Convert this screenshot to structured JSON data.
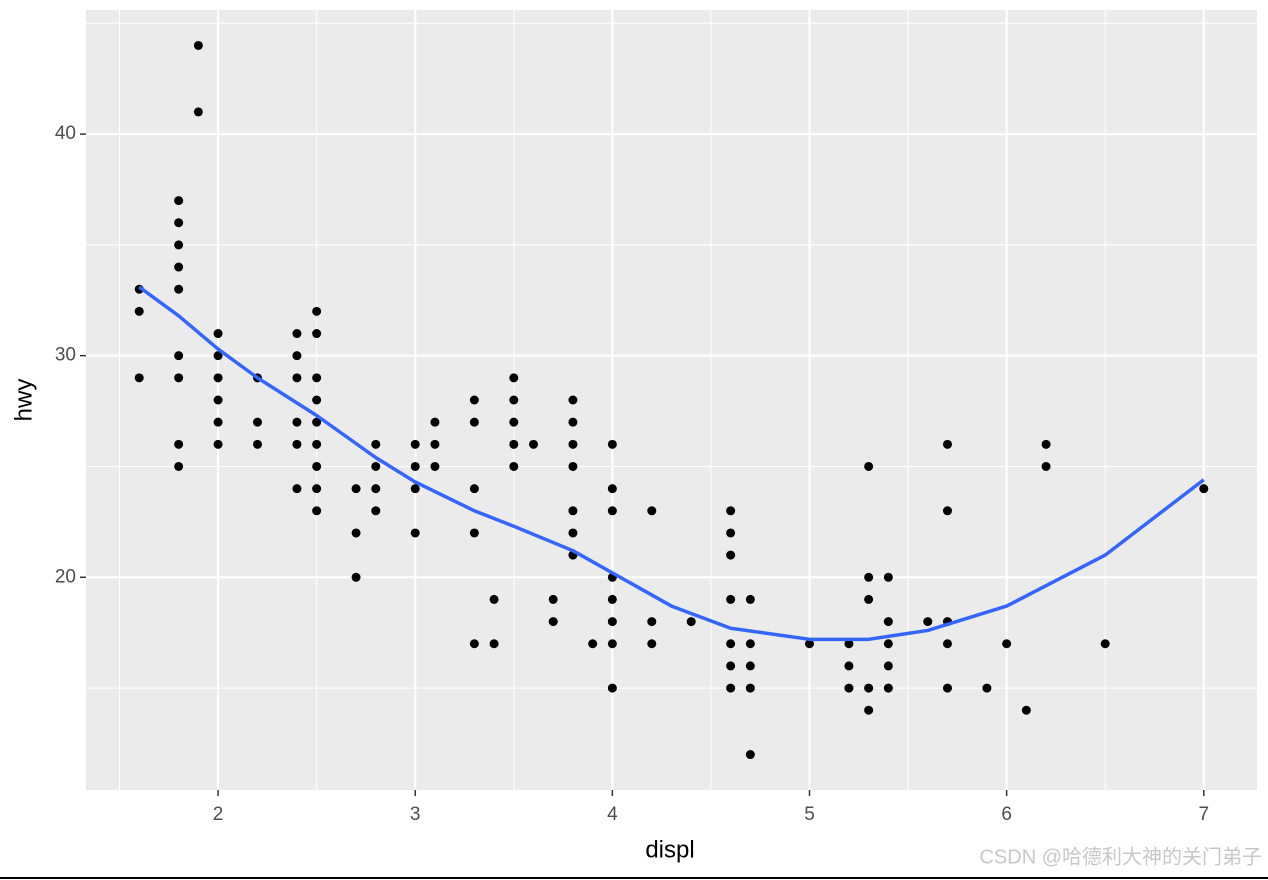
{
  "chart_data": {
    "type": "scatter",
    "x_label": "displ",
    "y_label": "hwy",
    "xlim": [
      1.33,
      7.27
    ],
    "ylim": [
      10.4,
      45.6
    ],
    "xticks": [
      2,
      3,
      4,
      5,
      6,
      7
    ],
    "yticks": [
      20,
      30,
      40
    ],
    "x_minor_ticks": [
      1.5,
      2.5,
      3.5,
      4.5,
      5.5,
      6.5
    ],
    "y_minor_ticks": [
      15,
      25,
      35,
      45
    ],
    "grid": true,
    "points": {
      "color": "#000000",
      "x": [
        1.6,
        1.6,
        1.6,
        1.8,
        1.8,
        1.8,
        1.8,
        1.8,
        1.8,
        1.8,
        1.8,
        1.8,
        1.9,
        1.9,
        2.0,
        2.0,
        2.0,
        2.0,
        2.0,
        2.0,
        2.2,
        2.2,
        2.2,
        2.4,
        2.4,
        2.4,
        2.4,
        2.4,
        2.4,
        2.5,
        2.5,
        2.5,
        2.5,
        2.5,
        2.5,
        2.5,
        2.5,
        2.5,
        2.7,
        2.7,
        2.7,
        2.8,
        2.8,
        2.8,
        2.8,
        3.0,
        3.0,
        3.0,
        3.0,
        3.1,
        3.1,
        3.1,
        3.3,
        3.3,
        3.3,
        3.3,
        3.3,
        3.4,
        3.4,
        3.5,
        3.5,
        3.5,
        3.5,
        3.5,
        3.6,
        3.7,
        3.7,
        3.8,
        3.8,
        3.8,
        3.8,
        3.8,
        3.8,
        3.8,
        3.9,
        4.0,
        4.0,
        4.0,
        4.0,
        4.0,
        4.0,
        4.0,
        4.0,
        4.2,
        4.2,
        4.2,
        4.4,
        4.6,
        4.6,
        4.6,
        4.6,
        4.6,
        4.6,
        4.6,
        4.7,
        4.7,
        4.7,
        4.7,
        4.7,
        5.0,
        5.2,
        5.2,
        5.2,
        5.3,
        5.3,
        5.3,
        5.3,
        5.3,
        5.4,
        5.4,
        5.4,
        5.4,
        5.4,
        5.6,
        5.7,
        5.7,
        5.7,
        5.7,
        5.7,
        5.9,
        6.0,
        6.1,
        6.2,
        6.2,
        6.5,
        7.0
      ],
      "y": [
        33,
        32,
        29,
        37,
        36,
        35,
        34,
        33,
        30,
        29,
        26,
        25,
        44,
        41,
        31,
        30,
        29,
        28,
        27,
        26,
        29,
        27,
        26,
        31,
        30,
        29,
        27,
        26,
        24,
        32,
        31,
        29,
        28,
        27,
        26,
        25,
        24,
        23,
        24,
        22,
        20,
        26,
        25,
        24,
        23,
        26,
        25,
        24,
        22,
        27,
        26,
        25,
        28,
        27,
        24,
        22,
        17,
        19,
        17,
        29,
        28,
        27,
        26,
        25,
        26,
        19,
        18,
        28,
        27,
        26,
        25,
        23,
        22,
        21,
        17,
        26,
        24,
        23,
        20,
        19,
        18,
        17,
        15,
        23,
        18,
        17,
        18,
        23,
        22,
        21,
        19,
        17,
        16,
        15,
        19,
        17,
        16,
        15,
        12,
        17,
        17,
        16,
        15,
        25,
        20,
        19,
        15,
        14,
        20,
        18,
        17,
        16,
        15,
        18,
        26,
        23,
        18,
        17,
        15,
        15,
        17,
        14,
        26,
        25,
        17,
        24
      ]
    },
    "smooth": {
      "color": "#3366ff",
      "x": [
        1.6,
        1.8,
        2.0,
        2.2,
        2.5,
        2.8,
        3.0,
        3.3,
        3.5,
        3.8,
        4.0,
        4.3,
        4.6,
        5.0,
        5.3,
        5.6,
        6.0,
        6.5,
        7.0
      ],
      "y": [
        33.1,
        31.8,
        30.3,
        29.0,
        27.3,
        25.4,
        24.3,
        23.0,
        22.3,
        21.2,
        20.2,
        18.7,
        17.7,
        17.2,
        17.2,
        17.6,
        18.7,
        21.0,
        24.4
      ]
    },
    "watermark": "CSDN @哈德利大神的关门弟子"
  }
}
